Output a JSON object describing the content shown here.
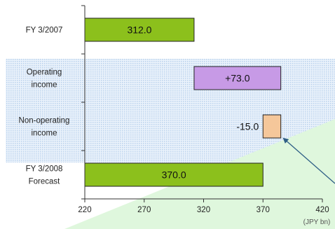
{
  "chart_data": {
    "type": "bar",
    "title": "",
    "xlabel": "",
    "unit_label": "(JPY bn)",
    "xlim": [
      220,
      420
    ],
    "xticks": [
      220,
      270,
      320,
      370,
      420
    ],
    "grid": false,
    "categories": [
      [
        "FY 3/2007"
      ],
      [
        "Operating",
        "income"
      ],
      [
        "Non-operating",
        "income"
      ],
      [
        "FY 3/2008",
        "Forecast"
      ]
    ],
    "bars": [
      {
        "start": 220,
        "end": 312.0,
        "label": "312.0",
        "kind": "total"
      },
      {
        "start": 312.0,
        "end": 385.0,
        "label": "+73.0",
        "kind": "increase"
      },
      {
        "start": 370.0,
        "end": 385.0,
        "label": "-15.0",
        "kind": "decrease"
      },
      {
        "start": 220,
        "end": 370.0,
        "label": "370.0",
        "kind": "total"
      }
    ],
    "colors": {
      "total": "#8cc01c",
      "increase": "#c79ae6",
      "decrease": "#f5c79a",
      "highlight_band": "#c9def2",
      "highlight_triangle": "#dff7dd",
      "arrow": "#2f5f86"
    }
  }
}
